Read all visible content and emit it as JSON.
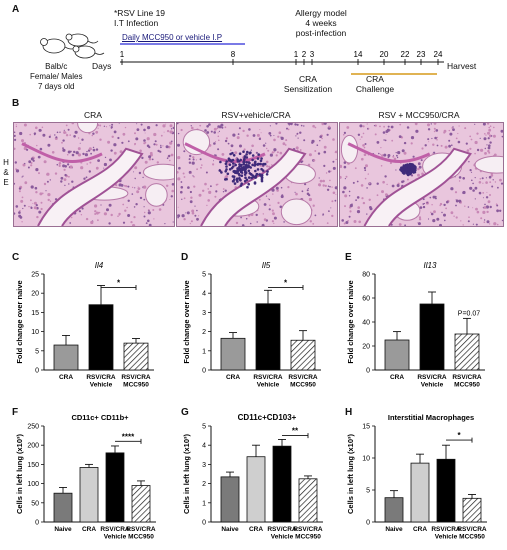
{
  "panel_letters": [
    "A",
    "B",
    "C",
    "D",
    "E",
    "F",
    "G",
    "H"
  ],
  "timeline": {
    "mice_label": "Balb/c\nFemale/ Males\n7 days old",
    "infection": "*RSV Line 19\nI.T Infection",
    "treatment": "Daily MCC950 or vehicle I.P",
    "allergy": "Allergy model\n4 weeks\npost-infection",
    "days_label": "Days",
    "ticks": [
      "1",
      "8",
      "1",
      "2",
      "3",
      "14",
      "20",
      "22",
      "23",
      "24"
    ],
    "harvest": "Harvest",
    "sensitization": "CRA\nSensitization",
    "challenge": "CRA\nChallenge"
  },
  "micrographs": {
    "titles": [
      "CRA",
      "RSV+vehicle/CRA",
      "RSV + MCC950/CRA"
    ],
    "side_label": "H\n&\nE"
  },
  "chart_data": [
    {
      "panel": "C",
      "type": "bar",
      "title": "Il4",
      "ylabel": "Fold change over naive",
      "categories": [
        "CRA",
        "RSV/CRA Vehicle",
        "RSV/CRA MCC950"
      ],
      "values": [
        6.5,
        17,
        7
      ],
      "errors": [
        2.5,
        5,
        1.2
      ],
      "yticks": [
        "0",
        "5",
        "10",
        "15",
        "20",
        "25"
      ],
      "ylim": [
        0,
        25
      ],
      "fills": [
        "#9a9a9a",
        "#000000",
        "hatch"
      ],
      "sig": [
        {
          "from": 1,
          "to": 2,
          "label": "*",
          "y": 21.5
        }
      ]
    },
    {
      "panel": "D",
      "type": "bar",
      "title": "Il5",
      "ylabel": "Fold change over naive",
      "categories": [
        "CRA",
        "RSV/CRA Vehicle",
        "RSV/CRA MCC950"
      ],
      "values": [
        1.65,
        3.45,
        1.55
      ],
      "errors": [
        0.3,
        0.7,
        0.5
      ],
      "yticks": [
        "0",
        "1",
        "2",
        "3",
        "4",
        "5"
      ],
      "ylim": [
        0,
        5
      ],
      "fills": [
        "#9a9a9a",
        "#000000",
        "hatch"
      ],
      "sig": [
        {
          "from": 1,
          "to": 2,
          "label": "*",
          "y": 4.3
        }
      ]
    },
    {
      "panel": "E",
      "type": "bar",
      "title": "Il13",
      "ylabel": "Fold change over naive",
      "categories": [
        "CRA",
        "RSV/CRA Vehicle",
        "RSV/CRA MCC950"
      ],
      "values": [
        25,
        55,
        30
      ],
      "errors": [
        7,
        10,
        13
      ],
      "yticks": [
        "0",
        "20",
        "40",
        "60",
        "80"
      ],
      "ylim": [
        0,
        80
      ],
      "fills": [
        "#9a9a9a",
        "#000000",
        "hatch"
      ],
      "annotation": {
        "index": 2,
        "label": "P=0.07"
      }
    },
    {
      "panel": "F",
      "type": "bar",
      "title": "CD11c+ CD11b+",
      "ylabel": "Cells in left lung (x10³)",
      "categories": [
        "Naive",
        "CRA",
        "RSV/CRA Vehicle",
        "RSV/CRA MCC950"
      ],
      "values": [
        75,
        142,
        180,
        95
      ],
      "errors": [
        15,
        8,
        18,
        12
      ],
      "yticks": [
        "0",
        "50",
        "100",
        "150",
        "200",
        "250"
      ],
      "ylim": [
        0,
        250
      ],
      "fills": [
        "#7a7a7a",
        "#cfcfcf",
        "#000000",
        "hatch"
      ],
      "sig": [
        {
          "from": 2,
          "to": 3,
          "label": "****",
          "y": 210
        }
      ]
    },
    {
      "panel": "G",
      "type": "bar",
      "title": "CD11c+CD103+",
      "ylabel": "Cells in left lung (x10³)",
      "categories": [
        "Naive",
        "CRA",
        "RSV/CRA Vehicle",
        "RSV/CRA MCC950"
      ],
      "values": [
        2.35,
        3.4,
        3.95,
        2.25
      ],
      "errors": [
        0.25,
        0.6,
        0.35,
        0.15
      ],
      "yticks": [
        "0",
        "1",
        "2",
        "3",
        "4",
        "5"
      ],
      "ylim": [
        0,
        5
      ],
      "fills": [
        "#7a7a7a",
        "#cfcfcf",
        "#000000",
        "hatch"
      ],
      "sig": [
        {
          "from": 2,
          "to": 3,
          "label": "**",
          "y": 4.5
        }
      ]
    },
    {
      "panel": "H",
      "type": "bar",
      "title": "Interstitial Macrophages",
      "ylabel": "Cells in left lung (x10³)",
      "categories": [
        "Naive",
        "CRA",
        "RSV/CRA Vehicle",
        "RSV/CRA MCC950"
      ],
      "values": [
        3.8,
        9.2,
        9.8,
        3.7
      ],
      "errors": [
        1.1,
        1.4,
        2.2,
        0.6
      ],
      "yticks": [
        "0",
        "5",
        "10",
        "15"
      ],
      "ylim": [
        0,
        15
      ],
      "fills": [
        "#7a7a7a",
        "#cfcfcf",
        "#000000",
        "hatch"
      ],
      "sig": [
        {
          "from": 2,
          "to": 3,
          "label": "*",
          "y": 12.8
        }
      ]
    }
  ]
}
